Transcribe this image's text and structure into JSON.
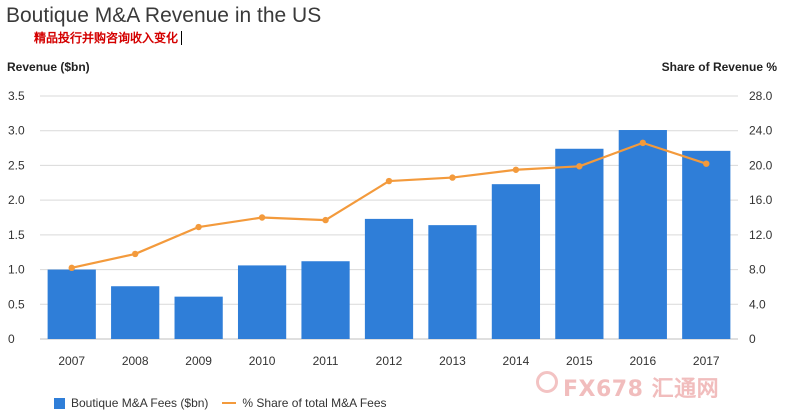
{
  "header": {
    "title": "Boutique M&A Revenue in the US",
    "subtitle": "精品投行并购咨询收入变化"
  },
  "watermark": {
    "text": "FX678 汇通网"
  },
  "colors": {
    "bar": "#2f7ed8",
    "line": "#f39a3c",
    "grid": "#d9d9d9",
    "axis": "#bfbfbf"
  },
  "legend": {
    "bar_label": "Boutique M&A Fees ($bn)",
    "line_label": "% Share of total M&A Fees"
  },
  "chart_data": {
    "type": "bar",
    "title": "Boutique M&A Revenue in the US",
    "ylabel": "Revenue ($bn)",
    "y2label": "Share of Revenue %",
    "categories": [
      "2007",
      "2008",
      "2009",
      "2010",
      "2011",
      "2012",
      "2013",
      "2014",
      "2015",
      "2016",
      "2017"
    ],
    "ylim": [
      0,
      3.5
    ],
    "y2lim": [
      0,
      28
    ],
    "yticks": [
      "0",
      "0.5",
      "1.0",
      "1.5",
      "2.0",
      "2.5",
      "3.0",
      "3.5"
    ],
    "y2ticks": [
      "0",
      "4.0",
      "8.0",
      "12.0",
      "16.0",
      "20.0",
      "24.0",
      "28.0"
    ],
    "series": [
      {
        "name": "Boutique M&A Fees ($bn)",
        "type": "bar",
        "axis": "left",
        "values": [
          1.0,
          0.76,
          0.61,
          1.06,
          1.12,
          1.73,
          1.64,
          2.23,
          2.74,
          3.01,
          2.71
        ]
      },
      {
        "name": "% Share of total M&A Fees",
        "type": "line",
        "axis": "right",
        "values": [
          8.2,
          9.8,
          12.9,
          14.0,
          13.7,
          18.2,
          18.6,
          19.5,
          19.9,
          22.6,
          20.2
        ]
      }
    ],
    "grid": true,
    "legend_position": "bottom"
  }
}
